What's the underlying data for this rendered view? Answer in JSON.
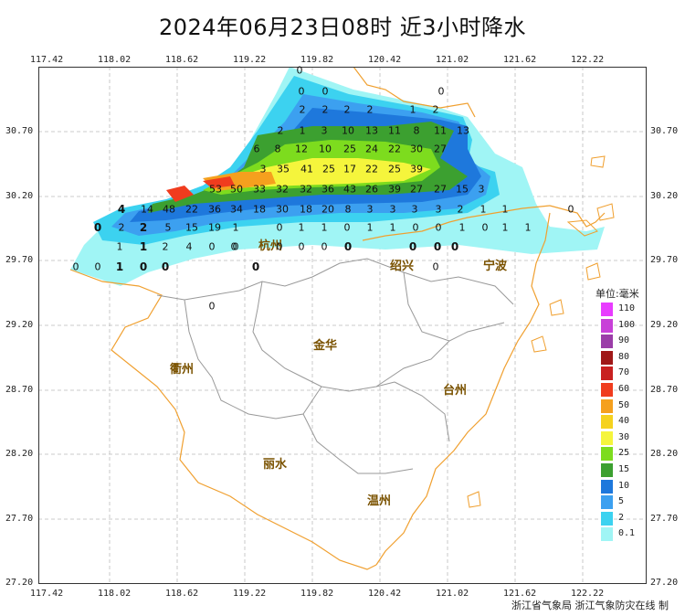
{
  "title": "2024年06月23日08时  近3小时降水",
  "axes": {
    "lon_ticks": [
      "117.42",
      "118.02",
      "118.62",
      "119.22",
      "119.82",
      "120.42",
      "121.02",
      "121.62",
      "122.22"
    ],
    "lat_ticks": [
      "30.70",
      "30.20",
      "29.70",
      "29.20",
      "28.70",
      "28.20",
      "27.70",
      "27.20"
    ]
  },
  "legend": {
    "title": "单位:毫米",
    "items": [
      {
        "label": "110",
        "color": "#e83cff"
      },
      {
        "label": "100",
        "color": "#c840d8"
      },
      {
        "label": "90",
        "color": "#9b3da8"
      },
      {
        "label": "80",
        "color": "#a01818"
      },
      {
        "label": "70",
        "color": "#c82020"
      },
      {
        "label": "60",
        "color": "#f03c1e"
      },
      {
        "label": "50",
        "color": "#f5a01e"
      },
      {
        "label": "40",
        "color": "#f5d21e"
      },
      {
        "label": "30",
        "color": "#f5f53c"
      },
      {
        "label": "25",
        "color": "#7ddc1e"
      },
      {
        "label": "15",
        "color": "#3ca030"
      },
      {
        "label": "10",
        "color": "#1e78dc"
      },
      {
        "label": "5",
        "color": "#3ca0f0"
      },
      {
        "label": "2",
        "color": "#3cd2f0"
      },
      {
        "label": "0.1",
        "color": "#a0f5f5"
      }
    ]
  },
  "cities": [
    {
      "name": "杭州"
    },
    {
      "name": "绍兴"
    },
    {
      "name": "宁波"
    },
    {
      "name": "衢州"
    },
    {
      "name": "金华"
    },
    {
      "name": "台州"
    },
    {
      "name": "丽水"
    },
    {
      "name": "温州"
    }
  ],
  "station_values": [
    "0",
    "0",
    "0",
    "0",
    "2",
    "2",
    "2",
    "2",
    "1",
    "2",
    "2",
    "1",
    "3",
    "10",
    "13",
    "11",
    "8",
    "11",
    "13",
    "6",
    "8",
    "12",
    "10",
    "25",
    "24",
    "22",
    "30",
    "27",
    "3",
    "35",
    "41",
    "25",
    "17",
    "22",
    "25",
    "39",
    "53",
    "50",
    "33",
    "32",
    "32",
    "36",
    "43",
    "26",
    "39",
    "27",
    "27",
    "15",
    "3",
    "4",
    "14",
    "48",
    "22",
    "36",
    "34",
    "18",
    "30",
    "18",
    "20",
    "8",
    "3",
    "3",
    "3",
    "3",
    "2",
    "1",
    "1",
    "0",
    "0",
    "2",
    "2",
    "5",
    "15",
    "19",
    "1",
    "0",
    "1",
    "1",
    "0",
    "1",
    "1",
    "0",
    "0",
    "1",
    "0",
    "1",
    "1",
    "1",
    "1",
    "2",
    "4",
    "0",
    "0",
    "0",
    "0",
    "0",
    "0",
    "0",
    "0",
    "0",
    "0",
    "0",
    "1",
    "0",
    "0",
    "0",
    "0",
    "0",
    "0",
    "0"
  ],
  "footer": "浙江省气象局   浙江气象防灾在线 制"
}
